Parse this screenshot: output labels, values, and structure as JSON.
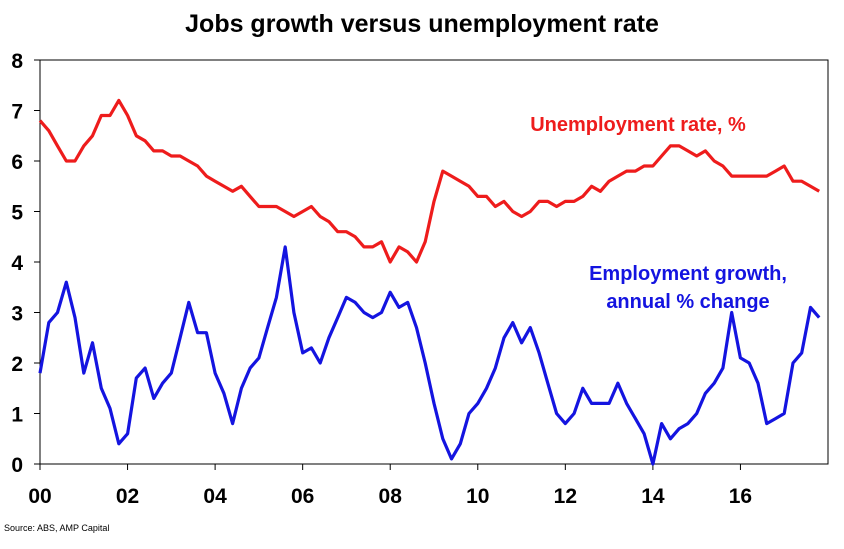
{
  "chart_data": {
    "type": "line",
    "title": "Jobs growth versus unemployment rate",
    "xlabel": "",
    "ylabel": "",
    "xlim": [
      2000,
      2018
    ],
    "ylim": [
      0,
      8
    ],
    "x_ticks": [
      "00",
      "02",
      "04",
      "06",
      "08",
      "10",
      "12",
      "14",
      "16"
    ],
    "y_ticks": [
      "0",
      "1",
      "2",
      "3",
      "4",
      "5",
      "6",
      "7",
      "8"
    ],
    "grid": false,
    "colors": {
      "unemployment": "#ee1c1c",
      "employment": "#1414e0"
    },
    "series": [
      {
        "name": "Unemployment rate, %",
        "label_lines": [
          "Unemployment rate, %"
        ],
        "x": [
          2000.0,
          2000.2,
          2000.4,
          2000.6,
          2000.8,
          2001.0,
          2001.2,
          2001.4,
          2001.6,
          2001.8,
          2002.0,
          2002.2,
          2002.4,
          2002.6,
          2002.8,
          2003.0,
          2003.2,
          2003.4,
          2003.6,
          2003.8,
          2004.0,
          2004.2,
          2004.4,
          2004.6,
          2004.8,
          2005.0,
          2005.2,
          2005.4,
          2005.6,
          2005.8,
          2006.0,
          2006.2,
          2006.4,
          2006.6,
          2006.8,
          2007.0,
          2007.2,
          2007.4,
          2007.6,
          2007.8,
          2008.0,
          2008.2,
          2008.4,
          2008.6,
          2008.8,
          2009.0,
          2009.2,
          2009.4,
          2009.6,
          2009.8,
          2010.0,
          2010.2,
          2010.4,
          2010.6,
          2010.8,
          2011.0,
          2011.2,
          2011.4,
          2011.6,
          2011.8,
          2012.0,
          2012.2,
          2012.4,
          2012.6,
          2012.8,
          2013.0,
          2013.2,
          2013.4,
          2013.6,
          2013.8,
          2014.0,
          2014.2,
          2014.4,
          2014.6,
          2014.8,
          2015.0,
          2015.2,
          2015.4,
          2015.6,
          2015.8,
          2016.0,
          2016.2,
          2016.4,
          2016.6,
          2016.8,
          2017.0,
          2017.2,
          2017.4,
          2017.6,
          2017.8
        ],
        "values": [
          6.8,
          6.6,
          6.3,
          6.0,
          6.0,
          6.3,
          6.5,
          6.9,
          6.9,
          7.2,
          6.9,
          6.5,
          6.4,
          6.2,
          6.2,
          6.1,
          6.1,
          6.0,
          5.9,
          5.7,
          5.6,
          5.5,
          5.4,
          5.5,
          5.3,
          5.1,
          5.1,
          5.1,
          5.0,
          4.9,
          5.0,
          5.1,
          4.9,
          4.8,
          4.6,
          4.6,
          4.5,
          4.3,
          4.3,
          4.4,
          4.0,
          4.3,
          4.2,
          4.0,
          4.4,
          5.2,
          5.8,
          5.7,
          5.6,
          5.5,
          5.3,
          5.3,
          5.1,
          5.2,
          5.0,
          4.9,
          5.0,
          5.2,
          5.2,
          5.1,
          5.2,
          5.2,
          5.3,
          5.5,
          5.4,
          5.6,
          5.7,
          5.8,
          5.8,
          5.9,
          5.9,
          6.1,
          6.3,
          6.3,
          6.2,
          6.1,
          6.2,
          6.0,
          5.9,
          5.7,
          5.7,
          5.7,
          5.7,
          5.7,
          5.8,
          5.9,
          5.6,
          5.6,
          5.5,
          5.4
        ]
      },
      {
        "name": "Employment growth, annual % change",
        "label_lines": [
          "Employment growth,",
          "annual % change"
        ],
        "x": [
          2000.0,
          2000.2,
          2000.4,
          2000.6,
          2000.8,
          2001.0,
          2001.2,
          2001.4,
          2001.6,
          2001.8,
          2002.0,
          2002.2,
          2002.4,
          2002.6,
          2002.8,
          2003.0,
          2003.2,
          2003.4,
          2003.6,
          2003.8,
          2004.0,
          2004.2,
          2004.4,
          2004.6,
          2004.8,
          2005.0,
          2005.2,
          2005.4,
          2005.6,
          2005.8,
          2006.0,
          2006.2,
          2006.4,
          2006.6,
          2006.8,
          2007.0,
          2007.2,
          2007.4,
          2007.6,
          2007.8,
          2008.0,
          2008.2,
          2008.4,
          2008.6,
          2008.8,
          2009.0,
          2009.2,
          2009.4,
          2009.6,
          2009.8,
          2010.0,
          2010.2,
          2010.4,
          2010.6,
          2010.8,
          2011.0,
          2011.2,
          2011.4,
          2011.6,
          2011.8,
          2012.0,
          2012.2,
          2012.4,
          2012.6,
          2012.8,
          2013.0,
          2013.2,
          2013.4,
          2013.6,
          2013.8,
          2014.0,
          2014.2,
          2014.4,
          2014.6,
          2014.8,
          2015.0,
          2015.2,
          2015.4,
          2015.6,
          2015.8,
          2016.0,
          2016.2,
          2016.4,
          2016.6,
          2016.8,
          2017.0,
          2017.2,
          2017.4,
          2017.6,
          2017.8
        ],
        "values": [
          1.8,
          2.8,
          3.0,
          3.6,
          2.9,
          1.8,
          2.4,
          1.5,
          1.1,
          0.4,
          0.6,
          1.7,
          1.9,
          1.3,
          1.6,
          1.8,
          2.5,
          3.2,
          2.6,
          2.6,
          1.8,
          1.4,
          0.8,
          1.5,
          1.9,
          2.1,
          2.7,
          3.3,
          4.3,
          3.0,
          2.2,
          2.3,
          2.0,
          2.5,
          2.9,
          3.3,
          3.2,
          3.0,
          2.9,
          3.0,
          3.4,
          3.1,
          3.2,
          2.7,
          2.0,
          1.2,
          0.5,
          0.1,
          0.4,
          1.0,
          1.2,
          1.5,
          1.9,
          2.5,
          2.8,
          2.4,
          2.7,
          2.2,
          1.6,
          1.0,
          0.8,
          1.0,
          1.5,
          1.2,
          1.2,
          1.2,
          1.6,
          1.2,
          0.9,
          0.6,
          0.0,
          0.8,
          0.5,
          0.7,
          0.8,
          1.0,
          1.4,
          1.6,
          1.9,
          3.0,
          2.1,
          2.0,
          1.6,
          0.8,
          0.9,
          1.0,
          2.0,
          2.2,
          3.1,
          2.9
        ]
      }
    ]
  },
  "source": "Source: ABS, AMP Capital"
}
